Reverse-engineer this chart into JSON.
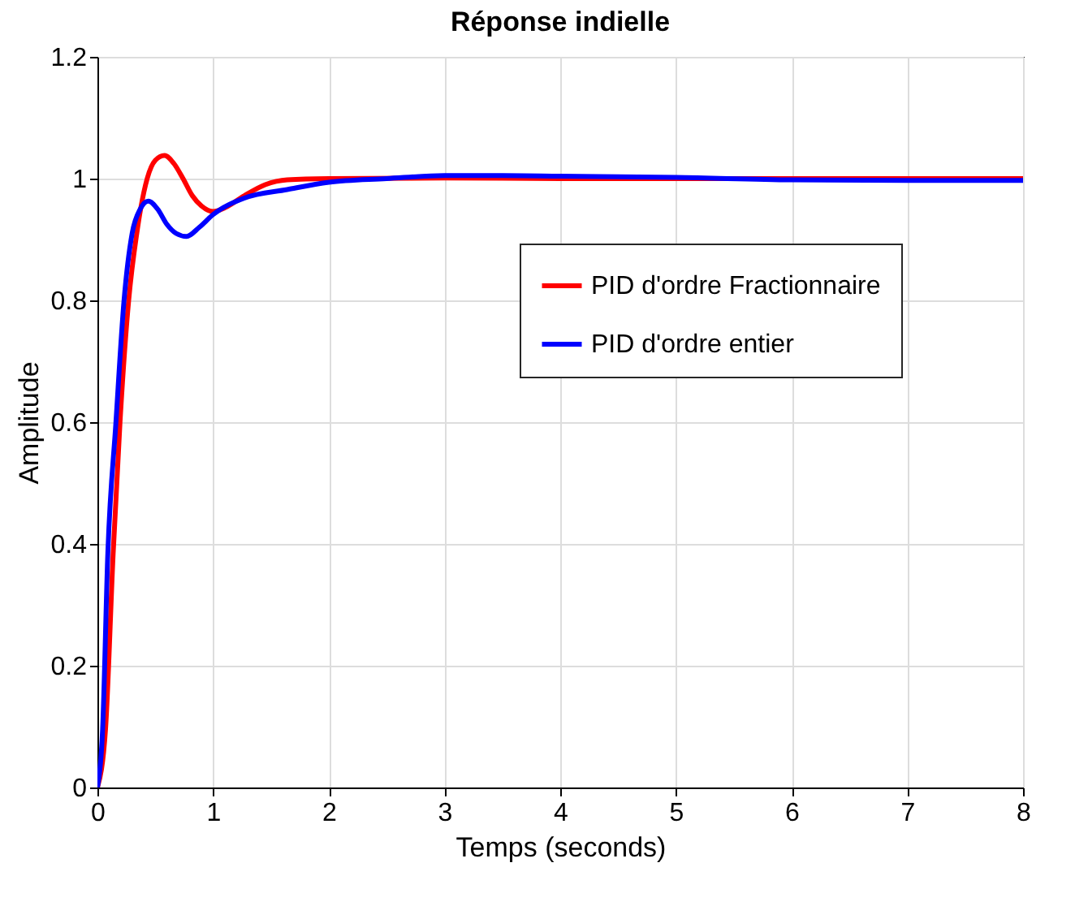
{
  "chart_data": {
    "type": "line",
    "title": "Réponse indielle",
    "xlabel": "Temps (seconds)",
    "ylabel": "Amplitude",
    "xlim": [
      0,
      8
    ],
    "ylim": [
      0,
      1.2
    ],
    "xticks": [
      0,
      1,
      2,
      3,
      4,
      5,
      6,
      7,
      8
    ],
    "yticks": [
      0,
      0.2,
      0.4,
      0.6,
      0.8,
      1,
      1.2
    ],
    "grid": true,
    "legend": "right",
    "line_style": "solid",
    "marker": "none",
    "series": [
      {
        "name": "PID d'ordre Fractionnaire",
        "color": "#ff0000",
        "x": [
          0,
          0.07,
          0.136,
          0.195,
          0.27,
          0.34,
          0.43,
          0.5,
          0.58,
          0.66,
          0.74,
          0.82,
          0.9,
          1.0,
          1.1,
          1.27,
          1.45,
          1.64,
          2,
          3,
          4,
          5,
          6,
          7,
          8
        ],
        "values": [
          0,
          0.096,
          0.385,
          0.6,
          0.8,
          0.91,
          1.0,
          1.03,
          1.038,
          1.025,
          1.0,
          0.972,
          0.955,
          0.946,
          0.952,
          0.972,
          0.99,
          0.998,
          1.0,
          1.001,
          1.0,
          1.0,
          1.0,
          1.0,
          1.0
        ]
      },
      {
        "name": "PID d'ordre entier",
        "color": "#0000ff",
        "x": [
          0,
          0.045,
          0.09,
          0.16,
          0.23,
          0.3,
          0.37,
          0.44,
          0.52,
          0.6,
          0.68,
          0.77,
          0.88,
          1.0,
          1.27,
          1.64,
          2,
          2.5,
          3,
          3.5,
          4,
          5,
          6,
          7,
          8
        ],
        "values": [
          0,
          0.096,
          0.385,
          0.6,
          0.8,
          0.91,
          0.95,
          0.963,
          0.95,
          0.925,
          0.91,
          0.905,
          0.92,
          0.941,
          0.968,
          0.982,
          0.994,
          1.0,
          1.005,
          1.005,
          1.004,
          1.002,
          0.998,
          0.997,
          0.997
        ]
      }
    ]
  }
}
